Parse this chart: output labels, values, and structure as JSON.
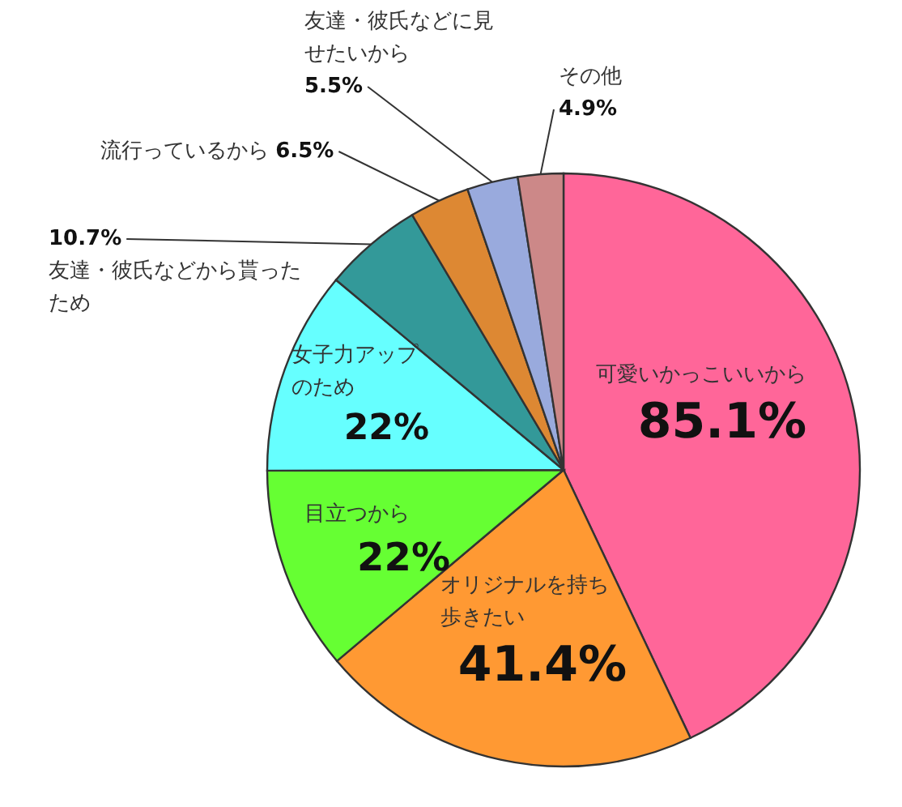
{
  "chart_data": {
    "type": "pie",
    "categories": [
      "可愛いかっこいいから",
      "オリジナルを持ち歩きたい",
      "目立つから",
      "女子力アップのため",
      "友達・彼氏などから貰ったため",
      "流行っているから",
      "友達・彼氏などに見せたいから",
      "その他"
    ],
    "values": [
      85.1,
      41.4,
      22,
      22,
      10.7,
      6.5,
      5.5,
      4.9
    ],
    "value_labels": [
      "85.1%",
      "41.4%",
      "22%",
      "22%",
      "10.7%",
      "6.5%",
      "5.5%",
      "4.9%"
    ],
    "colors": [
      "#ff6699",
      "#ff9933",
      "#66ff33",
      "#66ffff",
      "#339999",
      "#dd8833",
      "#99aadd",
      "#cc8888"
    ]
  }
}
